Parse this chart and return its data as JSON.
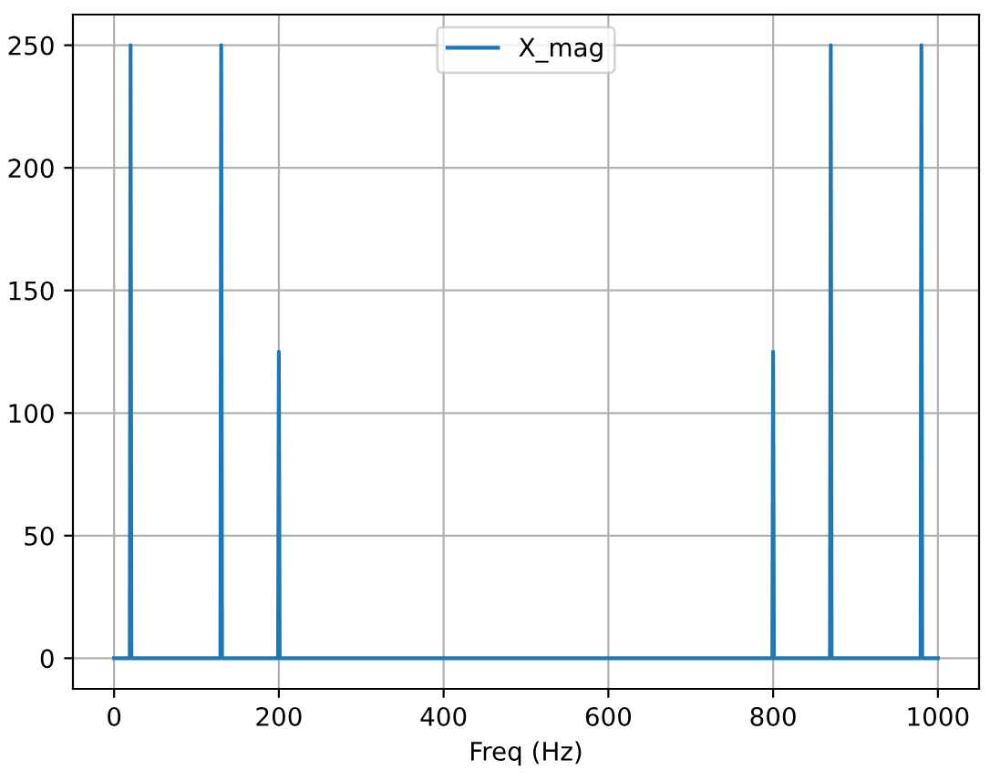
{
  "chart_data": {
    "type": "line",
    "xlabel": "Freq (Hz)",
    "x": [
      0,
      19,
      20,
      21,
      129,
      130,
      131,
      199,
      200,
      201,
      799,
      800,
      801,
      869,
      870,
      871,
      979,
      980,
      981,
      1000
    ],
    "series": [
      {
        "name": "X_mag",
        "color": "#1f77b4",
        "values": [
          0,
          0,
          250,
          0,
          0,
          250,
          0,
          0,
          125,
          0,
          0,
          125,
          0,
          0,
          250,
          0,
          0,
          250,
          0,
          0
        ]
      }
    ],
    "xlim": [
      -50,
      1050
    ],
    "ylim": [
      -12.5,
      262.5
    ],
    "xticks": [
      0,
      200,
      400,
      600,
      800,
      1000
    ],
    "yticks": [
      0,
      50,
      100,
      150,
      200,
      250
    ],
    "grid": true,
    "legend": "top"
  }
}
